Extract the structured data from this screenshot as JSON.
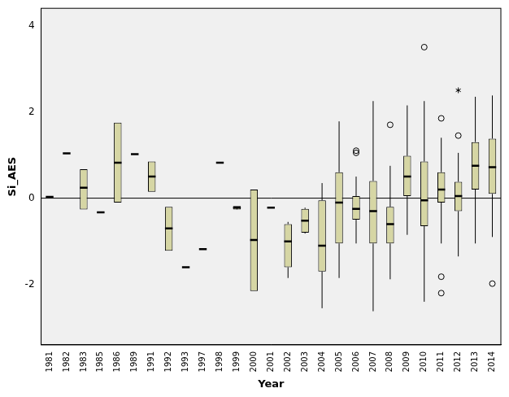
{
  "chart_data": {
    "type": "boxplot",
    "x_label": "Year",
    "y_label": "Si_AES",
    "categories": [
      "1981",
      "1982",
      "1983",
      "1985",
      "1986",
      "1989",
      "1991",
      "1992",
      "1993",
      "1997",
      "1998",
      "1999",
      "2000",
      "2001",
      "2002",
      "2003",
      "2004",
      "2005",
      "2006",
      "2007",
      "2008",
      "2009",
      "2010",
      "2011",
      "2012",
      "2013",
      "2014"
    ],
    "min": [
      0.03,
      1.04,
      -0.26,
      -0.33,
      -0.1,
      1.02,
      0.15,
      -1.22,
      -1.6,
      -1.18,
      0.82,
      -0.22,
      -2.15,
      -0.22,
      -1.85,
      -0.82,
      -2.55,
      -1.85,
      -1.05,
      -2.62,
      -1.88,
      -0.85,
      -2.4,
      -1.05,
      -1.35,
      -1.05,
      -0.9
    ],
    "q1": [
      0.03,
      1.04,
      -0.26,
      -0.33,
      -0.1,
      1.02,
      0.15,
      -1.22,
      -1.6,
      -1.18,
      0.82,
      -0.26,
      -2.15,
      -0.22,
      -1.6,
      -0.8,
      -1.7,
      -1.05,
      -0.5,
      -1.05,
      -1.05,
      0.05,
      -0.65,
      -0.1,
      -0.3,
      0.2,
      0.1
    ],
    "median": [
      0.03,
      1.04,
      0.24,
      -0.33,
      0.82,
      1.02,
      0.5,
      -0.7,
      -1.6,
      -1.18,
      0.82,
      -0.22,
      -0.97,
      -0.22,
      -1.0,
      -0.52,
      -1.1,
      -0.1,
      -0.25,
      -0.3,
      -0.6,
      0.5,
      -0.05,
      0.2,
      0.05,
      0.75,
      0.72
    ],
    "q3": [
      0.03,
      1.04,
      0.67,
      -0.33,
      1.75,
      1.02,
      0.85,
      -0.2,
      -1.6,
      -1.18,
      0.82,
      -0.18,
      0.2,
      -0.22,
      -0.6,
      -0.25,
      -0.05,
      0.6,
      0.05,
      0.4,
      -0.2,
      0.98,
      0.85,
      0.6,
      0.38,
      1.3,
      1.38
    ],
    "max": [
      0.03,
      1.04,
      0.67,
      -0.33,
      1.75,
      1.02,
      0.85,
      -0.2,
      -1.6,
      -1.18,
      0.82,
      -0.18,
      0.2,
      -0.22,
      -0.55,
      -0.22,
      0.35,
      1.78,
      0.5,
      2.25,
      0.75,
      2.15,
      2.25,
      1.4,
      1.05,
      2.35,
      2.38
    ],
    "outliers": [
      [],
      [],
      [],
      [],
      [],
      [],
      [],
      [],
      [],
      [],
      [],
      [],
      [],
      [],
      [],
      [],
      [],
      [],
      [
        1.05,
        1.1
      ],
      [],
      [
        1.7
      ],
      [],
      [
        3.5
      ],
      [
        1.85,
        -1.82,
        -2.2
      ],
      [
        1.45
      ],
      [],
      [
        -1.98
      ]
    ],
    "extremes": [
      [],
      [],
      [],
      [],
      [],
      [],
      [],
      [],
      [],
      [],
      [],
      [],
      [],
      [],
      [],
      [],
      [],
      [],
      [],
      [],
      [],
      [],
      [],
      [],
      [
        2.5
      ],
      [],
      []
    ],
    "color": "#d6d6a4",
    "reference_line": 0,
    "ylim": [
      -3.4,
      4.4
    ],
    "yticks": [
      -2,
      0,
      2,
      4
    ],
    "grid": false
  }
}
